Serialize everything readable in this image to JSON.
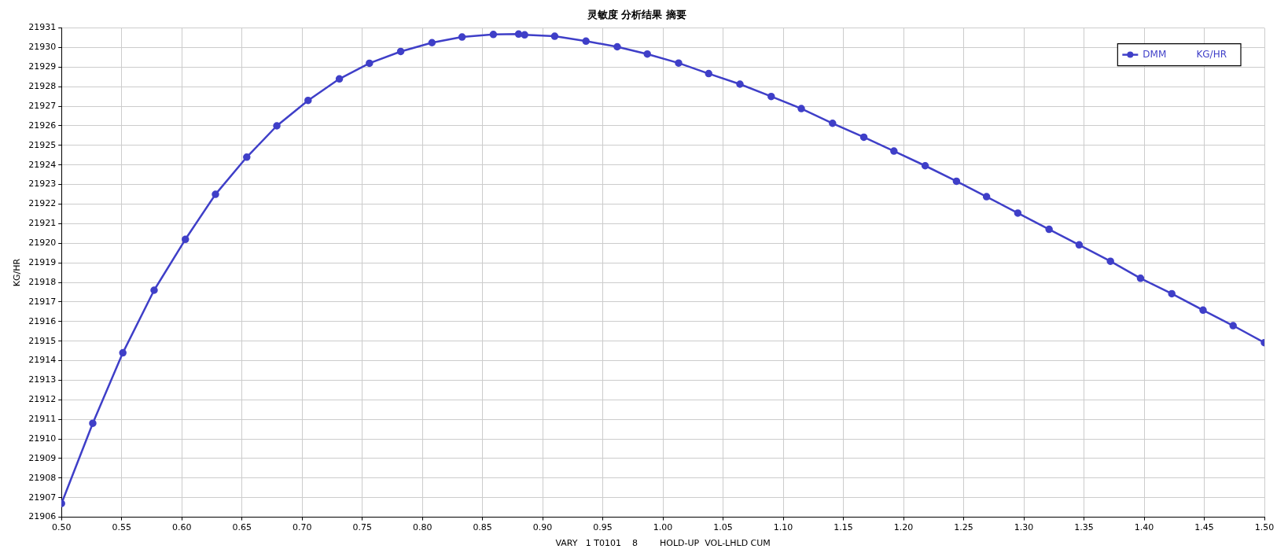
{
  "chart_data": {
    "type": "line",
    "title": "灵敏度 分析结果 摘要",
    "xlabel": "VARY   1 T0101    8        HOLD-UP  VOL-LHLD CUM",
    "ylabel": "KG/HR",
    "series": [
      {
        "name": "DMM          KG/HR",
        "color": "#3f3fc8",
        "x": [
          0.5,
          0.526,
          0.551,
          0.577,
          0.603,
          0.628,
          0.654,
          0.679,
          0.705,
          0.731,
          0.756,
          0.782,
          0.808,
          0.833,
          0.859,
          0.88,
          0.885,
          0.91,
          0.936,
          0.962,
          0.987,
          1.013,
          1.038,
          1.064,
          1.09,
          1.115,
          1.141,
          1.167,
          1.192,
          1.218,
          1.244,
          1.269,
          1.295,
          1.321,
          1.346,
          1.372,
          1.397,
          1.423,
          1.449,
          1.474,
          1.5
        ],
        "values": [
          21906.7,
          21910.8,
          21914.4,
          21917.6,
          21920.2,
          21922.5,
          21924.4,
          21926.0,
          21927.3,
          21928.4,
          21929.2,
          21929.8,
          21930.25,
          21930.54,
          21930.67,
          21930.69,
          21930.65,
          21930.58,
          21930.33,
          21930.04,
          21929.67,
          21929.21,
          21928.67,
          21928.13,
          21927.5,
          21926.88,
          21926.13,
          21925.42,
          21924.71,
          21923.96,
          21923.17,
          21922.38,
          21921.54,
          21920.71,
          21919.92,
          21919.08,
          21918.21,
          21917.42,
          21916.58,
          21915.79,
          21914.92
        ]
      }
    ],
    "xlim": [
      0.5,
      1.5
    ],
    "xticks": [
      {
        "value": 0.5,
        "label": "0.50"
      },
      {
        "value": 0.55,
        "label": "0.55"
      },
      {
        "value": 0.6,
        "label": "0.60"
      },
      {
        "value": 0.65,
        "label": "0.65"
      },
      {
        "value": 0.7,
        "label": "0.70"
      },
      {
        "value": 0.75,
        "label": "0.75"
      },
      {
        "value": 0.8,
        "label": "0.80"
      },
      {
        "value": 0.85,
        "label": "0.85"
      },
      {
        "value": 0.9,
        "label": "0.90"
      },
      {
        "value": 0.95,
        "label": "0.95"
      },
      {
        "value": 1.0,
        "label": "1.00"
      },
      {
        "value": 1.05,
        "label": "1.05"
      },
      {
        "value": 1.1,
        "label": "1.10"
      },
      {
        "value": 1.15,
        "label": "1.15"
      },
      {
        "value": 1.2,
        "label": "1.20"
      },
      {
        "value": 1.25,
        "label": "1.25"
      },
      {
        "value": 1.3,
        "label": "1.30"
      },
      {
        "value": 1.35,
        "label": "1.35"
      },
      {
        "value": 1.4,
        "label": "1.40"
      },
      {
        "value": 1.45,
        "label": "1.45"
      },
      {
        "value": 1.5,
        "label": "1.50"
      }
    ],
    "ylim": [
      21906,
      21931
    ],
    "yticks": [
      21906,
      21907,
      21908,
      21909,
      21910,
      21911,
      21912,
      21913,
      21914,
      21915,
      21916,
      21917,
      21918,
      21919,
      21920,
      21921,
      21922,
      21923,
      21924,
      21925,
      21926,
      21927,
      21928,
      21929,
      21930,
      21931
    ],
    "grid": true,
    "legend": "top right",
    "marker": "circle",
    "line_style": "solid"
  }
}
